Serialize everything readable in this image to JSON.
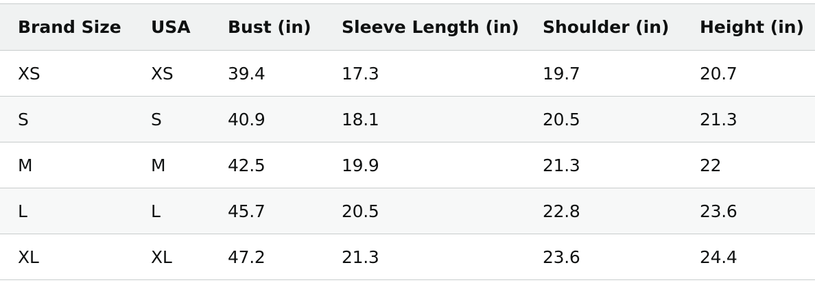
{
  "table": {
    "header": [
      "Brand Size",
      "USA",
      "Bust (in)",
      "Sleeve Length (in)",
      "Shoulder (in)",
      "Height (in)"
    ],
    "rows": [
      [
        "XS",
        "XS",
        39.4,
        17.3,
        19.7,
        20.7
      ],
      [
        "S",
        "S",
        40.9,
        18.1,
        20.5,
        21.3
      ],
      [
        "M",
        "M",
        42.5,
        19.9,
        21.3,
        22
      ],
      [
        "L",
        "L",
        45.7,
        20.5,
        22.8,
        23.6
      ],
      [
        "XL",
        "XL",
        47.2,
        21.3,
        23.6,
        24.4
      ]
    ]
  }
}
